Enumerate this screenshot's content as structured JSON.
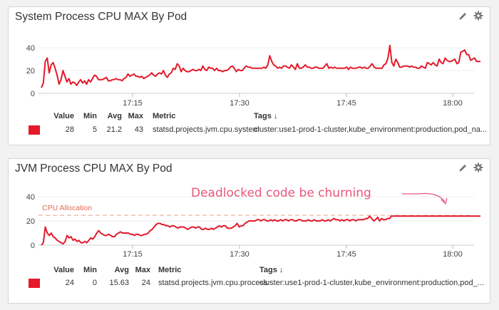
{
  "colors": {
    "series": "#e41a2b",
    "alloc_line": "#e8a08a",
    "annotation": "#e8577d"
  },
  "panels": [
    {
      "title": "System Process CPU MAX By Pod",
      "icons": [
        "pencil-icon",
        "gear-icon"
      ],
      "y_ticks": [
        "40",
        "20",
        "0"
      ],
      "x_ticks": [
        "17:15",
        "17:30",
        "17:45",
        "18:00"
      ],
      "legend": {
        "headers": {
          "value": "Value",
          "min": "Min",
          "avg": "Avg",
          "max": "Max",
          "metric": "Metric",
          "tags": "Tags ↓"
        },
        "row": {
          "value": "28",
          "min": "5",
          "avg": "21.2",
          "max": "43",
          "metric": "statsd.projects.jvm.cpu.system",
          "tags": "cluster:use1-prod-1-cluster,kube_environment:production,pod_na..."
        }
      }
    },
    {
      "title": "JVM Process CPU MAX By Pod",
      "icons": [
        "pencil-icon",
        "gear-icon"
      ],
      "y_ticks": [
        "40",
        "20",
        "0"
      ],
      "x_ticks": [
        "17:15",
        "17:30",
        "17:45",
        "18:00"
      ],
      "marker_label": "CPU Allocation",
      "annotation": "Deadlocked code be churning",
      "legend": {
        "headers": {
          "value": "Value",
          "min": "Min",
          "avg": "Avg",
          "max": "Max",
          "metric": "Metric",
          "tags": "Tags ↓"
        },
        "row": {
          "value": "24",
          "min": "0",
          "avg": "15.63",
          "max": "24",
          "metric": "statsd.projects.jvm.cpu.process",
          "tags": "cluster:use1-prod-1-cluster,kube_environment:production,pod_..."
        }
      }
    }
  ],
  "chart_data": [
    {
      "type": "line",
      "title": "System Process CPU MAX By Pod",
      "x_time_range": [
        "17:02",
        "18:03"
      ],
      "ylim": [
        0,
        45
      ],
      "series": [
        {
          "name": "statsd.projects.jvm.cpu.system",
          "values": [
            5,
            9,
            28,
            31,
            18,
            25,
            27,
            22,
            16,
            8,
            12,
            20,
            15,
            10,
            13,
            8,
            10,
            9,
            7,
            10,
            12,
            9,
            11,
            8,
            12,
            10,
            13,
            16,
            15,
            12,
            12,
            12,
            13,
            14,
            11,
            11,
            12,
            12,
            13,
            12,
            12,
            11,
            13,
            14,
            17,
            15,
            16,
            17,
            15,
            15,
            14,
            15,
            13,
            14,
            15,
            16,
            18,
            16,
            15,
            17,
            18,
            17,
            20,
            16,
            14,
            17,
            18,
            22,
            21,
            26,
            24,
            19,
            22,
            20,
            19,
            19,
            20,
            21,
            20,
            20,
            21,
            20,
            24,
            21,
            20,
            23,
            22,
            22,
            20,
            22,
            20,
            20,
            19,
            20,
            20,
            21,
            23,
            24,
            22,
            19,
            21,
            20,
            20,
            22,
            24,
            23,
            23,
            22,
            22,
            22,
            22,
            22,
            22,
            23,
            22,
            25,
            33,
            28,
            25,
            24,
            22,
            23,
            22,
            24,
            24,
            23,
            22,
            25,
            23,
            21,
            26,
            22,
            22,
            23,
            25,
            23,
            23,
            22,
            22,
            23,
            23,
            22,
            22,
            22,
            24,
            26,
            22,
            23,
            22,
            23,
            22,
            22,
            22,
            22,
            22,
            23,
            21,
            23,
            22,
            22,
            22,
            23,
            23,
            22,
            23,
            22,
            22,
            24,
            26,
            23,
            22,
            22,
            22,
            22,
            25,
            26,
            31,
            42,
            27,
            24,
            30,
            27,
            23,
            23,
            24,
            24,
            24,
            23,
            24,
            23,
            23,
            22,
            22,
            24,
            23,
            22,
            27,
            26,
            25,
            27,
            25,
            24,
            30,
            27,
            26,
            31,
            29,
            28,
            28,
            29,
            30,
            26,
            27,
            36,
            37,
            38,
            34,
            34,
            29,
            30,
            31,
            28,
            28,
            28
          ]
        }
      ]
    },
    {
      "type": "line",
      "title": "JVM Process CPU MAX By Pod",
      "x_time_range": [
        "17:02",
        "18:03"
      ],
      "ylim": [
        0,
        45
      ],
      "annotations": [
        "CPU Allocation",
        "Deadlocked code be churning"
      ],
      "reference_line": 24.6,
      "series": [
        {
          "name": "statsd.projects.jvm.cpu.process",
          "values": [
            0,
            2,
            15,
            10,
            8,
            10,
            7,
            6,
            4,
            3,
            2,
            1,
            3,
            8,
            6,
            7,
            4,
            5,
            3,
            4,
            2,
            2,
            3,
            2,
            4,
            6,
            5,
            7,
            10,
            12,
            10,
            9,
            8,
            8,
            9,
            8,
            7,
            7,
            9,
            10,
            11,
            10,
            10,
            10,
            10,
            9,
            9,
            8,
            9,
            9,
            8,
            8,
            9,
            9,
            10,
            12,
            13,
            15,
            17,
            18,
            18,
            17,
            17,
            16,
            16,
            15,
            16,
            16,
            15,
            14,
            15,
            15,
            15,
            14,
            13,
            14,
            15,
            15,
            14,
            15,
            15,
            13,
            13,
            14,
            13,
            13,
            14,
            13,
            14,
            15,
            16,
            15,
            16,
            16,
            14,
            14,
            14,
            15,
            16,
            18,
            15,
            16,
            16,
            18,
            19,
            20,
            20,
            20,
            20,
            21,
            21,
            20,
            21,
            21,
            20,
            20,
            21,
            20,
            21,
            20,
            20,
            21,
            20,
            21,
            21,
            20,
            21,
            21,
            20,
            20,
            21,
            21,
            20,
            20,
            20,
            21,
            20,
            20,
            21,
            20,
            20,
            20,
            21,
            20,
            20,
            21,
            20,
            21,
            22,
            21,
            21,
            20,
            21,
            20,
            21,
            21,
            20,
            21,
            21,
            20,
            21,
            21,
            21,
            21,
            22,
            22,
            24,
            22,
            20,
            21,
            23,
            20,
            22,
            21,
            21,
            22,
            22,
            24,
            24,
            24,
            24,
            24,
            24,
            24,
            24,
            24,
            24,
            24,
            24,
            24,
            24,
            24,
            24,
            24,
            24,
            24,
            24,
            24,
            24,
            24,
            24,
            24,
            24,
            24,
            24,
            24,
            24,
            24,
            24,
            24,
            24,
            24,
            24,
            24,
            24,
            24,
            24,
            24,
            24,
            24,
            24,
            24,
            24
          ]
        }
      ]
    }
  ]
}
